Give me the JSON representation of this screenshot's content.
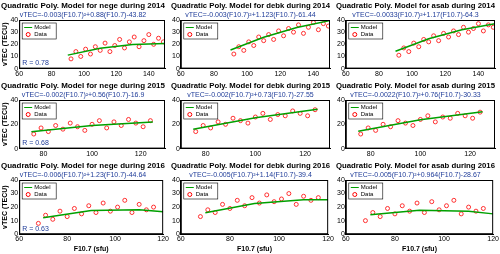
{
  "chart_data": [
    {
      "type": "scatter",
      "title": "Quadratic Poly. Model for nege during 2014",
      "subtitle": "vTEC=-0.003(F10.7)²+0.88(F10.7)-43.82",
      "annotation": "R = 0.78",
      "y_label": "vTEC (TECU)",
      "xlim": [
        60,
        150
      ],
      "xticks": [
        60,
        80,
        100,
        120,
        140
      ],
      "ylim": [
        0,
        40
      ],
      "yticks": [
        0,
        10,
        20,
        30,
        40
      ],
      "grid": false,
      "legend": "upper left",
      "series": [
        {
          "name": "Model",
          "type": "line",
          "color": "#00a000",
          "line_style": "solid",
          "x": [
            90,
            110,
            130,
            150
          ],
          "values": [
            11.1,
            16.7,
            19.9,
            20.7
          ]
        },
        {
          "name": "Data",
          "type": "scatter",
          "color": "#ff0000",
          "marker": "circle",
          "x": [
            92,
            95,
            98,
            101,
            104,
            107,
            110,
            113,
            116,
            119,
            122,
            125,
            128,
            131,
            134,
            137,
            140,
            143,
            146,
            149
          ],
          "values": [
            8,
            14,
            10,
            16,
            12,
            18,
            15,
            21,
            14,
            19,
            24,
            17,
            22,
            26,
            18,
            23,
            28,
            20,
            25,
            22
          ]
        }
      ]
    },
    {
      "type": "scatter",
      "title": "Quadratic Poly. Model for debk during 2014",
      "subtitle": "vTEC=-0.003(F10.7)²+1.123(F10.7)-61.44",
      "xlim": [
        60,
        150
      ],
      "xticks": [
        60,
        80,
        100,
        120,
        140
      ],
      "ylim": [
        0,
        40
      ],
      "yticks": [
        0,
        10,
        20,
        30,
        40
      ],
      "grid": false,
      "legend": "upper left",
      "series": [
        {
          "name": "Model",
          "type": "line",
          "color": "#00a000",
          "line_style": "solid",
          "x": [
            90,
            110,
            130,
            150
          ],
          "values": [
            15.3,
            25.8,
            33.8,
            39.5
          ]
        },
        {
          "name": "Data",
          "type": "scatter",
          "color": "#ff0000",
          "marker": "circle",
          "x": [
            92,
            95,
            98,
            101,
            104,
            107,
            110,
            113,
            116,
            119,
            122,
            125,
            128,
            131,
            134,
            137,
            140,
            143,
            146,
            149
          ],
          "values": [
            12,
            18,
            15,
            22,
            19,
            26,
            23,
            28,
            24,
            31,
            27,
            33,
            30,
            36,
            29,
            34,
            38,
            32,
            37,
            35
          ]
        }
      ]
    },
    {
      "type": "scatter",
      "title": "Quadratic Poly. Model for asab during 2014",
      "subtitle": "vTEC=-0.0033(F10.7)²+1.17(F10.7)-64.3",
      "xlim": [
        60,
        150
      ],
      "xticks": [
        60,
        80,
        100,
        120,
        140
      ],
      "ylim": [
        0,
        40
      ],
      "yticks": [
        0,
        10,
        20,
        30,
        40
      ],
      "grid": false,
      "legend": "upper left",
      "series": [
        {
          "name": "Model",
          "type": "line",
          "color": "#00a000",
          "line_style": "solid",
          "x": [
            90,
            110,
            130,
            150
          ],
          "values": [
            14.3,
            24.5,
            32.0,
            36.9
          ]
        },
        {
          "name": "Data",
          "type": "scatter",
          "color": "#ff0000",
          "marker": "circle",
          "x": [
            92,
            95,
            98,
            101,
            104,
            107,
            110,
            113,
            116,
            119,
            122,
            125,
            128,
            131,
            134,
            137,
            140,
            143,
            146,
            149
          ],
          "values": [
            11,
            17,
            14,
            21,
            18,
            24,
            22,
            27,
            23,
            29,
            26,
            31,
            28,
            34,
            30,
            33,
            37,
            31,
            36,
            34
          ]
        }
      ]
    },
    {
      "type": "scatter",
      "title": "Quadratic Poly. Model for nege during 2015",
      "subtitle": "vTEC=-0.002(F10.7)²+0.56(F10.7)-16.9",
      "annotation": "R = 0.68",
      "y_label": "vTEC (TECU)",
      "xlim": [
        70,
        130
      ],
      "xticks": [
        80,
        100,
        120
      ],
      "ylim": [
        0,
        40
      ],
      "yticks": [
        0,
        20,
        40
      ],
      "grid": false,
      "legend": "upper left",
      "series": [
        {
          "name": "Model",
          "type": "line",
          "color": "#00a000",
          "line_style": "solid",
          "x": [
            75,
            100,
            125
          ],
          "values": [
            13.9,
            19.1,
            21.9
          ]
        },
        {
          "name": "Data",
          "type": "scatter",
          "color": "#ff0000",
          "marker": "circle",
          "x": [
            76,
            79,
            82,
            85,
            88,
            91,
            94,
            97,
            100,
            103,
            106,
            109,
            112,
            115,
            118,
            121,
            124
          ],
          "values": [
            12,
            17,
            14,
            19,
            16,
            21,
            18,
            15,
            20,
            23,
            17,
            22,
            19,
            24,
            21,
            18,
            23
          ]
        }
      ]
    },
    {
      "type": "scatter",
      "title": "Quadratic Poly. Model for debk during 2015",
      "subtitle": "vTEC=-0.002(F10.7)²+0.73(F10.7)-27.55",
      "xlim": [
        70,
        130
      ],
      "xticks": [
        80,
        100,
        120
      ],
      "ylim": [
        0,
        40
      ],
      "yticks": [
        0,
        20,
        40
      ],
      "grid": false,
      "legend": "upper left",
      "series": [
        {
          "name": "Model",
          "type": "line",
          "color": "#00a000",
          "line_style": "solid",
          "x": [
            75,
            100,
            125
          ],
          "values": [
            15.95,
            25.45,
            32.45
          ]
        },
        {
          "name": "Data",
          "type": "scatter",
          "color": "#ff0000",
          "marker": "circle",
          "x": [
            76,
            79,
            82,
            85,
            88,
            91,
            94,
            97,
            100,
            103,
            106,
            109,
            112,
            115,
            118,
            121,
            124
          ],
          "values": [
            14,
            19,
            17,
            22,
            20,
            25,
            23,
            21,
            26,
            29,
            24,
            28,
            27,
            31,
            29,
            27,
            32
          ]
        }
      ]
    },
    {
      "type": "scatter",
      "title": "Quadratic Poly. Model for asab during 2015",
      "subtitle": "vTEC=-0.0022(F10.7)²+0.76(F10.7)-30.33",
      "xlim": [
        70,
        130
      ],
      "xticks": [
        80,
        100,
        120
      ],
      "ylim": [
        0,
        40
      ],
      "yticks": [
        0,
        20,
        40
      ],
      "grid": false,
      "legend": "upper left",
      "series": [
        {
          "name": "Model",
          "type": "line",
          "color": "#00a000",
          "line_style": "solid",
          "x": [
            75,
            100,
            125
          ],
          "values": [
            14.3,
            23.7,
            30.3
          ]
        },
        {
          "name": "Data",
          "type": "scatter",
          "color": "#ff0000",
          "marker": "circle",
          "x": [
            76,
            79,
            82,
            85,
            88,
            91,
            94,
            97,
            100,
            103,
            106,
            109,
            112,
            115,
            118,
            121,
            124
          ],
          "values": [
            12,
            17,
            15,
            20,
            18,
            23,
            21,
            19,
            24,
            27,
            22,
            26,
            25,
            29,
            27,
            25,
            30
          ]
        }
      ]
    },
    {
      "type": "scatter",
      "title": "Quadratic Poly. Model for nege during 2016",
      "subtitle": "vTEC=-0.006(F10.7)²+1.23(F10.7)-44.64",
      "annotation": "R = 0.63",
      "y_label": "vTEC (TECU)",
      "x_label": "F10.7 (sfu)",
      "xlim": [
        60,
        120
      ],
      "xticks": [
        60,
        80,
        100,
        120
      ],
      "ylim": [
        0,
        40
      ],
      "yticks": [
        0,
        10,
        20,
        30,
        40
      ],
      "grid": false,
      "legend": "upper left",
      "series": [
        {
          "name": "Model",
          "type": "line",
          "color": "#00a000",
          "line_style": "solid",
          "x": [
            70,
            90,
            110,
            120
          ],
          "values": [
            12.1,
            17.5,
            18.1,
            16.6
          ]
        },
        {
          "name": "Data",
          "type": "scatter",
          "color": "#ff0000",
          "marker": "circle",
          "x": [
            68,
            71,
            74,
            77,
            80,
            83,
            86,
            89,
            92,
            95,
            98,
            101,
            104,
            107,
            110,
            113,
            116
          ],
          "values": [
            8,
            14,
            11,
            17,
            13,
            19,
            15,
            21,
            16,
            23,
            17,
            20,
            25,
            16,
            22,
            18,
            20
          ]
        }
      ]
    },
    {
      "type": "scatter",
      "title": "Quadratic Poly. Model for debk during 2016",
      "subtitle": "vTEC=-0.005(F10.7)²+1.14(F10.7)-39.4",
      "x_label": "F10.7 (sfu)",
      "xlim": [
        60,
        120
      ],
      "xticks": [
        60,
        80,
        100,
        120
      ],
      "ylim": [
        0,
        40
      ],
      "yticks": [
        0,
        10,
        20,
        30,
        40
      ],
      "grid": false,
      "legend": "upper left",
      "series": [
        {
          "name": "Model",
          "type": "line",
          "color": "#00a000",
          "line_style": "solid",
          "x": [
            70,
            90,
            110,
            120
          ],
          "values": [
            15.9,
            22.7,
            25.5,
            25.4
          ]
        },
        {
          "name": "Data",
          "type": "scatter",
          "color": "#ff0000",
          "marker": "circle",
          "x": [
            68,
            71,
            74,
            77,
            80,
            83,
            86,
            89,
            92,
            95,
            98,
            101,
            104,
            107,
            110,
            113,
            116
          ],
          "values": [
            13,
            18,
            16,
            22,
            19,
            25,
            21,
            27,
            23,
            29,
            24,
            26,
            30,
            22,
            28,
            25,
            27
          ]
        }
      ]
    },
    {
      "type": "scatter",
      "title": "Quadratic Poly. Model for asab during 2016",
      "subtitle": "vTEC=-0.005(F10.7)²+0.964(F10.7)-28.67",
      "x_label": "F10.7 (sfu)",
      "xlim": [
        60,
        120
      ],
      "xticks": [
        60,
        80,
        100,
        120
      ],
      "ylim": [
        0,
        40
      ],
      "yticks": [
        0,
        10,
        20,
        30,
        40
      ],
      "grid": false,
      "legend": "upper left",
      "series": [
        {
          "name": "Model",
          "type": "line",
          "color": "#00a000",
          "line_style": "solid",
          "x": [
            70,
            90,
            110,
            120
          ],
          "values": [
            14.3,
            17.6,
            16.9,
            15.0
          ]
        },
        {
          "name": "Data",
          "type": "scatter",
          "color": "#ff0000",
          "marker": "circle",
          "x": [
            68,
            71,
            74,
            77,
            80,
            83,
            86,
            89,
            92,
            95,
            98,
            101,
            104,
            107,
            110,
            113,
            116
          ],
          "values": [
            10,
            16,
            13,
            19,
            15,
            21,
            17,
            23,
            16,
            24,
            18,
            21,
            25,
            15,
            20,
            17,
            19
          ]
        }
      ]
    }
  ]
}
